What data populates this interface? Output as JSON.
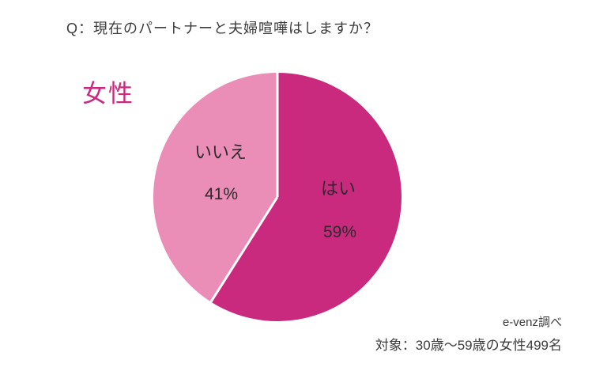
{
  "question": "Q：現在のパートナーと夫婦喧嘩はしますか？",
  "group_label": "女性",
  "footer": {
    "credit": "e-venz調べ",
    "sample": "対象：30歳〜59歳の女性499名"
  },
  "colors": {
    "background": "#ffffff",
    "accent": "#c92a7e",
    "slice_yes": "#c92a7e",
    "slice_no": "#ea8db7",
    "label_text": "#2b2b2b",
    "body_text": "#3c3c3c",
    "divider": "#ffffff"
  },
  "chart_data": {
    "type": "pie",
    "title": "Q：現在のパートナーと夫婦喧嘩はしますか？",
    "group": "女性",
    "categories": [
      "はい",
      "いいえ"
    ],
    "values": [
      59,
      41
    ],
    "unit": "%",
    "start_angle_deg": 0,
    "direction": "clockwise",
    "slice_colors": [
      "#c92a7e",
      "#ea8db7"
    ],
    "legend": "none",
    "labels": [
      {
        "name": "はい",
        "percent": "59%"
      },
      {
        "name": "いいえ",
        "percent": "41%"
      }
    ],
    "source": "e-venz調べ",
    "sample_note": "対象：30歳〜59歳の女性499名"
  }
}
